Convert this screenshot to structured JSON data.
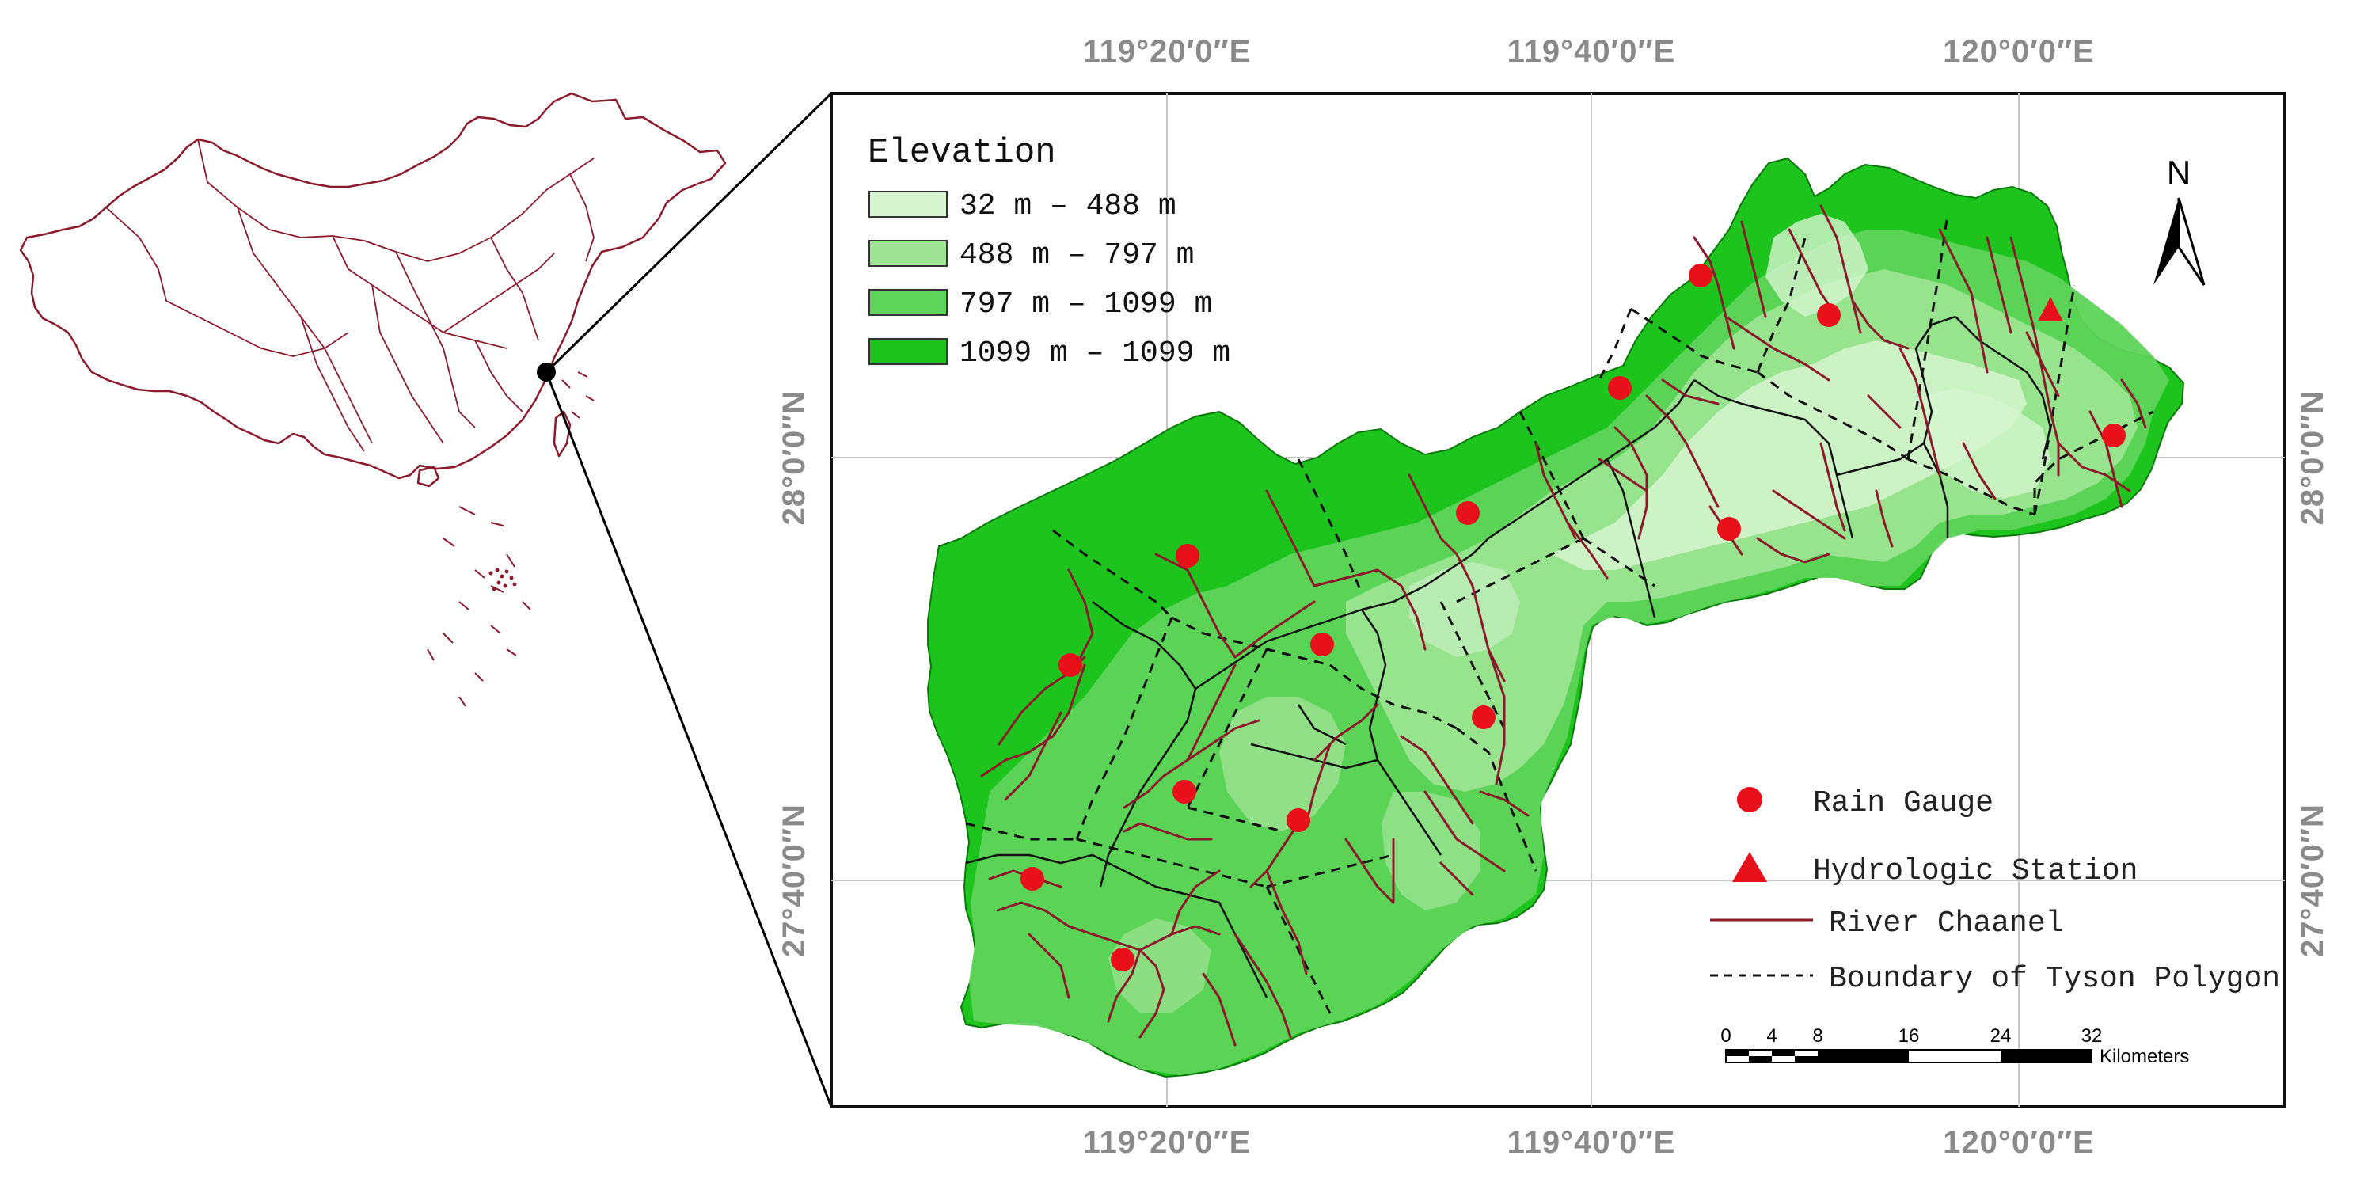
{
  "colors": {
    "elev1": "#d6f5d0",
    "elev2": "#9fe495",
    "elev3": "#5ed45a",
    "elev4": "#1ec41e",
    "river": "#8b1a2b",
    "gauge": "#e8101a",
    "china_outline": "#8b1a2b",
    "frame": "#111111",
    "grid": "#c8c8c8"
  },
  "coordinates": {
    "top": [
      "119°20′0″E",
      "119°40′0″E",
      "120°0′0″E"
    ],
    "bottom": [
      "119°20′0″E",
      "119°40′0″E",
      "120°0′0″E"
    ],
    "left": [
      "28°0′0″N",
      "27°40′0″N"
    ],
    "right": [
      "28°0′0″N",
      "27°40′0″N"
    ]
  },
  "legend": {
    "title": "Elevation",
    "classes": [
      {
        "label": "32 m – 488 m"
      },
      {
        "label": "488 m – 797 m"
      },
      {
        "label": "797 m – 1099 m"
      },
      {
        "label": "1099 m – 1099 m"
      }
    ]
  },
  "symbols": {
    "rain_gauge": "Rain Gauge",
    "hydrologic_station": "Hydrologic Station",
    "river_channel": "River Chaanel",
    "boundary": "Boundary of Tyson Polygon"
  },
  "north_arrow": "N",
  "scale_bar": {
    "ticks": [
      "0",
      "4",
      "8",
      "16",
      "24",
      "32"
    ],
    "unit": "Kilometers"
  }
}
